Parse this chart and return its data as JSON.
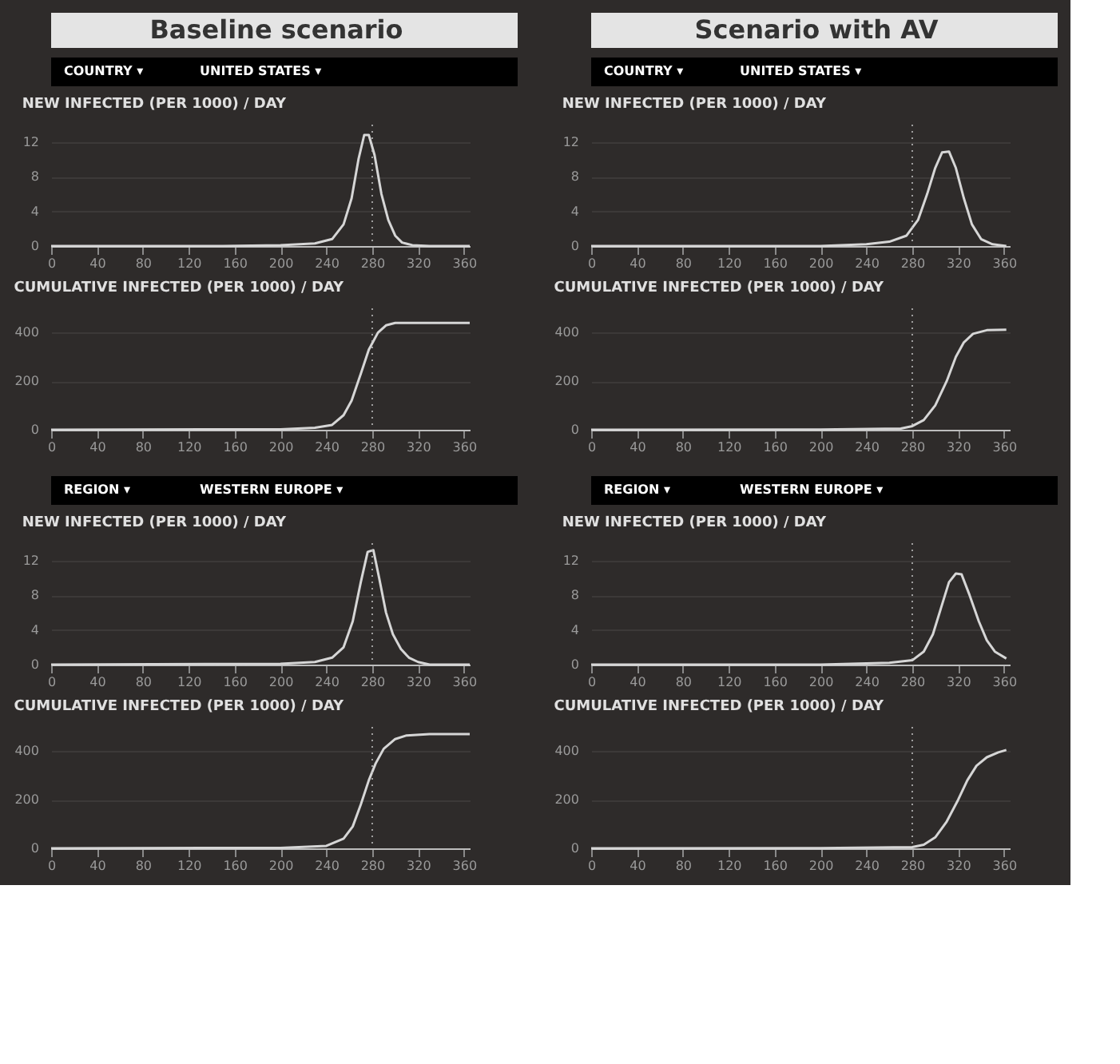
{
  "chart_data": [
    {
      "type": "line",
      "subtitle": "Baseline scenario",
      "annotations": [
        "COUNTRY ▾",
        "UNITED STATES ▾"
      ],
      "title": "NEW INFECTED (PER 1000) / DAY",
      "x": [
        0,
        150,
        200,
        230,
        245,
        255,
        262,
        268,
        273,
        277,
        282,
        288,
        294,
        300,
        306,
        315,
        330,
        365
      ],
      "series": [
        {
          "color": "#d6d6d6",
          "values": [
            0,
            0,
            0.1,
            0.3,
            0.8,
            2.5,
            5.5,
            10,
            12.8,
            12.8,
            10.5,
            6,
            3,
            1.2,
            0.4,
            0.1,
            0,
            0
          ]
        }
      ],
      "xlim": [
        0,
        365
      ],
      "xticks": [
        0,
        40,
        80,
        120,
        160,
        200,
        240,
        280,
        320,
        360
      ],
      "ylim": [
        0,
        14
      ],
      "yticks": [
        0,
        4,
        8,
        12
      ],
      "grid": "y",
      "ref_lines": [
        {
          "axis": "x",
          "value": 280,
          "line_style": "dotted"
        }
      ]
    },
    {
      "type": "line",
      "title": "CUMULATIVE INFECTED (PER 1000) / DAY",
      "x": [
        0,
        200,
        230,
        245,
        255,
        262,
        270,
        277,
        285,
        292,
        300,
        365
      ],
      "series": [
        {
          "color": "#d6d6d6",
          "values": [
            0,
            2,
            8,
            20,
            60,
            120,
            230,
            330,
            400,
            430,
            440,
            440
          ]
        }
      ],
      "xlim": [
        0,
        365
      ],
      "xticks": [
        0,
        40,
        80,
        120,
        160,
        200,
        240,
        280,
        320,
        360
      ],
      "ylim": [
        0,
        500
      ],
      "yticks": [
        0,
        200,
        400
      ],
      "grid": "y",
      "ref_lines": [
        {
          "axis": "x",
          "value": 280,
          "line_style": "dotted"
        }
      ]
    },
    {
      "type": "line",
      "subtitle": "Scenario with AV",
      "annotations": [
        "COUNTRY ▾",
        "UNITED STATES ▾"
      ],
      "title": "NEW INFECTED (PER 1000) / DAY",
      "x": [
        0,
        200,
        240,
        260,
        275,
        285,
        293,
        300,
        306,
        312,
        318,
        325,
        332,
        340,
        350,
        362
      ],
      "series": [
        {
          "color": "#d6d6d6",
          "values": [
            0,
            0,
            0.2,
            0.5,
            1.2,
            3,
            6,
            9,
            10.8,
            10.9,
            9,
            5.5,
            2.5,
            0.8,
            0.2,
            0
          ]
        }
      ],
      "xlim": [
        0,
        365
      ],
      "xticks": [
        0,
        40,
        80,
        120,
        160,
        200,
        240,
        280,
        320,
        360
      ],
      "ylim": [
        0,
        14
      ],
      "yticks": [
        0,
        4,
        8,
        12
      ],
      "grid": "y",
      "ref_lines": [
        {
          "axis": "x",
          "value": 280,
          "line_style": "dotted"
        }
      ]
    },
    {
      "type": "line",
      "title": "CUMULATIVE INFECTED (PER 1000) / DAY",
      "x": [
        0,
        200,
        270,
        280,
        290,
        300,
        310,
        318,
        325,
        333,
        345,
        362
      ],
      "series": [
        {
          "color": "#d6d6d6",
          "values": [
            0,
            1,
            5,
            15,
            40,
            100,
            200,
            300,
            360,
            395,
            410,
            412
          ]
        }
      ],
      "xlim": [
        0,
        365
      ],
      "xticks": [
        0,
        40,
        80,
        120,
        160,
        200,
        240,
        280,
        320,
        360
      ],
      "ylim": [
        0,
        500
      ],
      "yticks": [
        0,
        200,
        400
      ],
      "grid": "y",
      "ref_lines": [
        {
          "axis": "x",
          "value": 280,
          "line_style": "dotted"
        }
      ]
    },
    {
      "type": "line",
      "annotations": [
        "REGION ▾",
        "WESTERN EUROPE ▾"
      ],
      "title": "NEW INFECTED (PER 1000) / DAY",
      "x": [
        0,
        200,
        230,
        245,
        255,
        263,
        270,
        276,
        281,
        286,
        292,
        298,
        305,
        312,
        320,
        330,
        365
      ],
      "series": [
        {
          "color": "#d6d6d6",
          "values": [
            0,
            0.1,
            0.3,
            0.8,
            2,
            5,
            9.5,
            13,
            13.2,
            10,
            6,
            3.5,
            1.8,
            0.8,
            0.3,
            0,
            0
          ]
        }
      ],
      "xlim": [
        0,
        365
      ],
      "xticks": [
        0,
        40,
        80,
        120,
        160,
        200,
        240,
        280,
        320,
        360
      ],
      "ylim": [
        0,
        14
      ],
      "yticks": [
        0,
        4,
        8,
        12
      ],
      "grid": "y",
      "ref_lines": [
        {
          "axis": "x",
          "value": 280,
          "line_style": "dotted"
        }
      ]
    },
    {
      "type": "line",
      "title": "CUMULATIVE INFECTED (PER 1000) / DAY",
      "x": [
        0,
        200,
        240,
        255,
        263,
        270,
        277,
        283,
        290,
        300,
        310,
        330,
        365
      ],
      "series": [
        {
          "color": "#d6d6d6",
          "values": [
            0,
            2,
            10,
            40,
            90,
            180,
            280,
            350,
            410,
            450,
            465,
            470,
            470
          ]
        }
      ],
      "xlim": [
        0,
        365
      ],
      "xticks": [
        0,
        40,
        80,
        120,
        160,
        200,
        240,
        280,
        320,
        360
      ],
      "ylim": [
        0,
        500
      ],
      "yticks": [
        0,
        200,
        400
      ],
      "grid": "y",
      "ref_lines": [
        {
          "axis": "x",
          "value": 280,
          "line_style": "dotted"
        }
      ]
    },
    {
      "type": "line",
      "annotations": [
        "REGION ▾",
        "WESTERN EUROPE ▾"
      ],
      "title": "NEW INFECTED (PER 1000) / DAY",
      "x": [
        0,
        200,
        260,
        280,
        290,
        298,
        305,
        312,
        318,
        323,
        330,
        338,
        345,
        352,
        362
      ],
      "series": [
        {
          "color": "#d6d6d6",
          "values": [
            0,
            0,
            0.2,
            0.5,
            1.5,
            3.5,
            6.5,
            9.5,
            10.5,
            10.4,
            8,
            5,
            2.8,
            1.5,
            0.7
          ]
        }
      ],
      "xlim": [
        0,
        365
      ],
      "xticks": [
        0,
        40,
        80,
        120,
        160,
        200,
        240,
        280,
        320,
        360
      ],
      "ylim": [
        0,
        14
      ],
      "yticks": [
        0,
        4,
        8,
        12
      ],
      "grid": "y",
      "ref_lines": [
        {
          "axis": "x",
          "value": 280,
          "line_style": "dotted"
        }
      ]
    },
    {
      "type": "line",
      "title": "CUMULATIVE INFECTED (PER 1000) / DAY",
      "x": [
        0,
        200,
        280,
        290,
        300,
        310,
        320,
        328,
        336,
        345,
        355,
        362
      ],
      "series": [
        {
          "color": "#d6d6d6",
          "values": [
            0,
            1,
            5,
            15,
            45,
            110,
            200,
            280,
            340,
            375,
            395,
            405
          ]
        }
      ],
      "xlim": [
        0,
        365
      ],
      "xticks": [
        0,
        40,
        80,
        120,
        160,
        200,
        240,
        280,
        320,
        360
      ],
      "ylim": [
        0,
        500
      ],
      "yticks": [
        0,
        200,
        400
      ],
      "grid": "y",
      "ref_lines": [
        {
          "axis": "x",
          "value": 280,
          "line_style": "dotted"
        }
      ]
    }
  ]
}
